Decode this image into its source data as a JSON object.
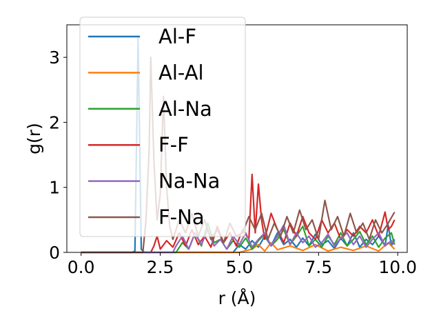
{
  "chart_data": {
    "type": "line",
    "xlabel": "r (Å)",
    "ylabel": "g(r)",
    "xlim": [
      -0.45,
      10.3
    ],
    "ylim": [
      0,
      3.5
    ],
    "xticks": [
      0.0,
      2.5,
      5.0,
      7.5,
      10.0
    ],
    "xtick_labels": [
      "0.0",
      "2.5",
      "5.0",
      "7.5",
      "10.0"
    ],
    "yticks": [
      0,
      1,
      2,
      3
    ],
    "ytick_labels": [
      "0",
      "1",
      "2",
      "3"
    ],
    "grid": false,
    "legend": "upper-left",
    "series": [
      {
        "name": "Al-F",
        "color": "#1f77b4",
        "points": [
          [
            0,
            0
          ],
          [
            1.6,
            0
          ],
          [
            1.7,
            0.02
          ],
          [
            1.8,
            3.3
          ],
          [
            1.9,
            0.05
          ],
          [
            2.0,
            0
          ],
          [
            4.8,
            0
          ],
          [
            5.0,
            0.12
          ],
          [
            5.2,
            0.05
          ],
          [
            5.4,
            0.18
          ],
          [
            5.6,
            0.08
          ],
          [
            5.8,
            0.25
          ],
          [
            6.0,
            0.1
          ],
          [
            6.2,
            0.3
          ],
          [
            6.4,
            0.12
          ],
          [
            6.6,
            0.2
          ],
          [
            6.8,
            0.08
          ],
          [
            7.0,
            0.22
          ],
          [
            7.2,
            0.1
          ],
          [
            7.4,
            0.28
          ],
          [
            7.6,
            0.12
          ],
          [
            7.8,
            0.18
          ],
          [
            8.0,
            0.06
          ],
          [
            8.2,
            0.22
          ],
          [
            8.4,
            0.1
          ],
          [
            8.6,
            0.3
          ],
          [
            8.8,
            0.08
          ],
          [
            9.0,
            0.2
          ],
          [
            9.2,
            0.12
          ],
          [
            9.4,
            0.25
          ],
          [
            9.6,
            0.1
          ],
          [
            9.7,
            0.42
          ],
          [
            9.8,
            0.1
          ],
          [
            9.9,
            0.2
          ]
        ]
      },
      {
        "name": "Al-Al",
        "color": "#ff7f0e",
        "points": [
          [
            0,
            0
          ],
          [
            5.0,
            0
          ],
          [
            5.4,
            0.05
          ],
          [
            5.6,
            0.12
          ],
          [
            5.8,
            0.02
          ],
          [
            6.0,
            0.15
          ],
          [
            6.2,
            0.04
          ],
          [
            6.6,
            0.1
          ],
          [
            7.0,
            0.03
          ],
          [
            7.4,
            0.12
          ],
          [
            7.8,
            0.02
          ],
          [
            8.2,
            0.08
          ],
          [
            8.6,
            0.03
          ],
          [
            9.0,
            0.1
          ],
          [
            9.4,
            0.02
          ],
          [
            9.7,
            0.15
          ],
          [
            9.9,
            0.05
          ]
        ]
      },
      {
        "name": "Al-Na",
        "color": "#2ca02c",
        "points": [
          [
            0,
            0
          ],
          [
            3.0,
            0
          ],
          [
            3.2,
            0.15
          ],
          [
            3.4,
            0.05
          ],
          [
            3.6,
            0.3
          ],
          [
            3.8,
            0.1
          ],
          [
            4.0,
            0.45
          ],
          [
            4.2,
            0.15
          ],
          [
            4.4,
            0.2
          ],
          [
            4.6,
            0.05
          ],
          [
            4.8,
            0.18
          ],
          [
            5.0,
            0.08
          ],
          [
            5.2,
            0.22
          ],
          [
            5.4,
            0.05
          ],
          [
            5.6,
            0.18
          ],
          [
            5.8,
            0.28
          ],
          [
            6.0,
            0.1
          ],
          [
            6.2,
            0.2
          ],
          [
            6.4,
            0.35
          ],
          [
            6.6,
            0.12
          ],
          [
            6.8,
            0.25
          ],
          [
            7.0,
            0.4
          ],
          [
            7.2,
            0.1
          ],
          [
            7.4,
            0.2
          ],
          [
            7.6,
            0.08
          ],
          [
            7.8,
            0.25
          ],
          [
            8.0,
            0.12
          ],
          [
            8.2,
            0.3
          ],
          [
            8.4,
            0.1
          ],
          [
            8.6,
            0.2
          ],
          [
            8.8,
            0.32
          ],
          [
            9.0,
            0.12
          ],
          [
            9.2,
            0.25
          ],
          [
            9.4,
            0.08
          ],
          [
            9.6,
            0.22
          ],
          [
            9.8,
            0.3
          ],
          [
            9.9,
            0.12
          ]
        ]
      },
      {
        "name": "F-F",
        "color": "#d62728",
        "points": [
          [
            0,
            0
          ],
          [
            2.2,
            0
          ],
          [
            2.3,
            0.1
          ],
          [
            2.4,
            0.25
          ],
          [
            2.5,
            0.05
          ],
          [
            2.7,
            0.18
          ],
          [
            2.9,
            0.08
          ],
          [
            3.1,
            0.3
          ],
          [
            3.3,
            0.1
          ],
          [
            3.5,
            0.35
          ],
          [
            3.7,
            0.12
          ],
          [
            3.9,
            0.25
          ],
          [
            4.1,
            0.08
          ],
          [
            4.3,
            0.4
          ],
          [
            4.5,
            0.15
          ],
          [
            4.7,
            0.3
          ],
          [
            4.9,
            0.1
          ],
          [
            5.1,
            0.35
          ],
          [
            5.3,
            0.2
          ],
          [
            5.4,
            1.2
          ],
          [
            5.5,
            0.3
          ],
          [
            5.6,
            1.05
          ],
          [
            5.7,
            0.5
          ],
          [
            5.8,
            0.2
          ],
          [
            6.0,
            0.6
          ],
          [
            6.2,
            0.35
          ],
          [
            6.4,
            0.15
          ],
          [
            6.6,
            0.45
          ],
          [
            6.8,
            0.25
          ],
          [
            7.0,
            0.55
          ],
          [
            7.2,
            0.3
          ],
          [
            7.4,
            0.2
          ],
          [
            7.6,
            0.5
          ],
          [
            7.8,
            0.3
          ],
          [
            8.0,
            0.45
          ],
          [
            8.2,
            0.2
          ],
          [
            8.4,
            0.35
          ],
          [
            8.6,
            0.25
          ],
          [
            8.8,
            0.4
          ],
          [
            9.0,
            0.3
          ],
          [
            9.2,
            0.5
          ],
          [
            9.4,
            0.25
          ],
          [
            9.6,
            0.62
          ],
          [
            9.7,
            0.35
          ],
          [
            9.8,
            0.4
          ],
          [
            9.9,
            0.5
          ]
        ]
      },
      {
        "name": "Na-Na",
        "color": "#9467bd",
        "points": [
          [
            0,
            0
          ],
          [
            2.9,
            0
          ],
          [
            3.0,
            0.1
          ],
          [
            3.2,
            0.25
          ],
          [
            3.4,
            0.05
          ],
          [
            3.6,
            0.3
          ],
          [
            3.8,
            0.12
          ],
          [
            4.0,
            0.35
          ],
          [
            4.2,
            0.1
          ],
          [
            4.4,
            0.2
          ],
          [
            4.6,
            0.05
          ],
          [
            4.8,
            0.25
          ],
          [
            5.0,
            0.12
          ],
          [
            5.2,
            0.3
          ],
          [
            5.4,
            0.08
          ],
          [
            5.6,
            0.2
          ],
          [
            5.8,
            0.3
          ],
          [
            6.0,
            0.1
          ],
          [
            6.2,
            0.25
          ],
          [
            6.4,
            0.42
          ],
          [
            6.6,
            0.12
          ],
          [
            6.8,
            0.3
          ],
          [
            7.0,
            0.15
          ],
          [
            7.2,
            0.25
          ],
          [
            7.4,
            0.08
          ],
          [
            7.6,
            0.15
          ],
          [
            7.8,
            0.28
          ],
          [
            8.0,
            0.1
          ],
          [
            8.2,
            0.22
          ],
          [
            8.4,
            0.3
          ],
          [
            8.6,
            0.12
          ],
          [
            8.8,
            0.25
          ],
          [
            9.0,
            0.08
          ],
          [
            9.2,
            0.2
          ],
          [
            9.4,
            0.3
          ],
          [
            9.6,
            0.1
          ],
          [
            9.8,
            0.18
          ],
          [
            9.9,
            0.12
          ]
        ]
      },
      {
        "name": "F-Na",
        "color": "#8c564b",
        "points": [
          [
            0,
            0
          ],
          [
            1.95,
            0
          ],
          [
            2.05,
            0.5
          ],
          [
            2.15,
            1.6
          ],
          [
            2.2,
            3.0
          ],
          [
            2.3,
            1.4
          ],
          [
            2.4,
            0.5
          ],
          [
            2.5,
            0.9
          ],
          [
            2.6,
            2.4
          ],
          [
            2.7,
            1.0
          ],
          [
            2.8,
            0.4
          ],
          [
            2.9,
            0.2
          ],
          [
            3.1,
            0.5
          ],
          [
            3.3,
            0.3
          ],
          [
            3.5,
            0.6
          ],
          [
            3.7,
            0.25
          ],
          [
            3.9,
            0.5
          ],
          [
            4.1,
            0.2
          ],
          [
            4.3,
            0.35
          ],
          [
            4.5,
            0.15
          ],
          [
            4.7,
            0.45
          ],
          [
            4.9,
            0.25
          ],
          [
            5.1,
            0.3
          ],
          [
            5.3,
            0.55
          ],
          [
            5.5,
            0.35
          ],
          [
            5.7,
            0.6
          ],
          [
            5.9,
            0.2
          ],
          [
            6.1,
            0.45
          ],
          [
            6.3,
            0.25
          ],
          [
            6.5,
            0.55
          ],
          [
            6.7,
            0.3
          ],
          [
            6.9,
            0.65
          ],
          [
            7.1,
            0.35
          ],
          [
            7.3,
            0.5
          ],
          [
            7.5,
            0.2
          ],
          [
            7.7,
            0.8
          ],
          [
            7.9,
            0.35
          ],
          [
            8.1,
            0.55
          ],
          [
            8.3,
            0.25
          ],
          [
            8.5,
            0.6
          ],
          [
            8.7,
            0.3
          ],
          [
            8.9,
            0.45
          ],
          [
            9.1,
            0.2
          ],
          [
            9.3,
            0.5
          ],
          [
            9.5,
            0.3
          ],
          [
            9.7,
            0.45
          ],
          [
            9.9,
            0.62
          ]
        ]
      }
    ]
  }
}
